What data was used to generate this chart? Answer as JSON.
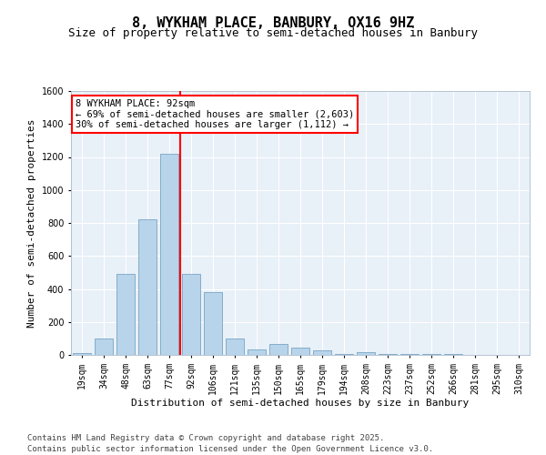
{
  "title1": "8, WYKHAM PLACE, BANBURY, OX16 9HZ",
  "title2": "Size of property relative to semi-detached houses in Banbury",
  "xlabel": "Distribution of semi-detached houses by size in Banbury",
  "ylabel": "Number of semi-detached properties",
  "categories": [
    "19sqm",
    "34sqm",
    "48sqm",
    "63sqm",
    "77sqm",
    "92sqm",
    "106sqm",
    "121sqm",
    "135sqm",
    "150sqm",
    "165sqm",
    "179sqm",
    "194sqm",
    "208sqm",
    "223sqm",
    "237sqm",
    "252sqm",
    "266sqm",
    "281sqm",
    "295sqm",
    "310sqm"
  ],
  "values": [
    10,
    100,
    490,
    820,
    1220,
    490,
    380,
    100,
    35,
    65,
    45,
    25,
    5,
    15,
    8,
    4,
    8,
    3,
    2,
    2,
    2
  ],
  "bar_color": "#b8d4ea",
  "bar_edge_color": "#6699bb",
  "red_line_index": 5,
  "annotation_text": "8 WYKHAM PLACE: 92sqm\n← 69% of semi-detached houses are smaller (2,603)\n30% of semi-detached houses are larger (1,112) →",
  "ylim": [
    0,
    1600
  ],
  "yticks": [
    0,
    200,
    400,
    600,
    800,
    1000,
    1200,
    1400,
    1600
  ],
  "background_color": "#e8f0f8",
  "grid_color": "#ffffff",
  "footer": "Contains HM Land Registry data © Crown copyright and database right 2025.\nContains public sector information licensed under the Open Government Licence v3.0.",
  "title1_fontsize": 11,
  "title2_fontsize": 9,
  "xlabel_fontsize": 8,
  "ylabel_fontsize": 8,
  "annotation_fontsize": 7.5,
  "footer_fontsize": 6.5,
  "tick_fontsize": 7
}
